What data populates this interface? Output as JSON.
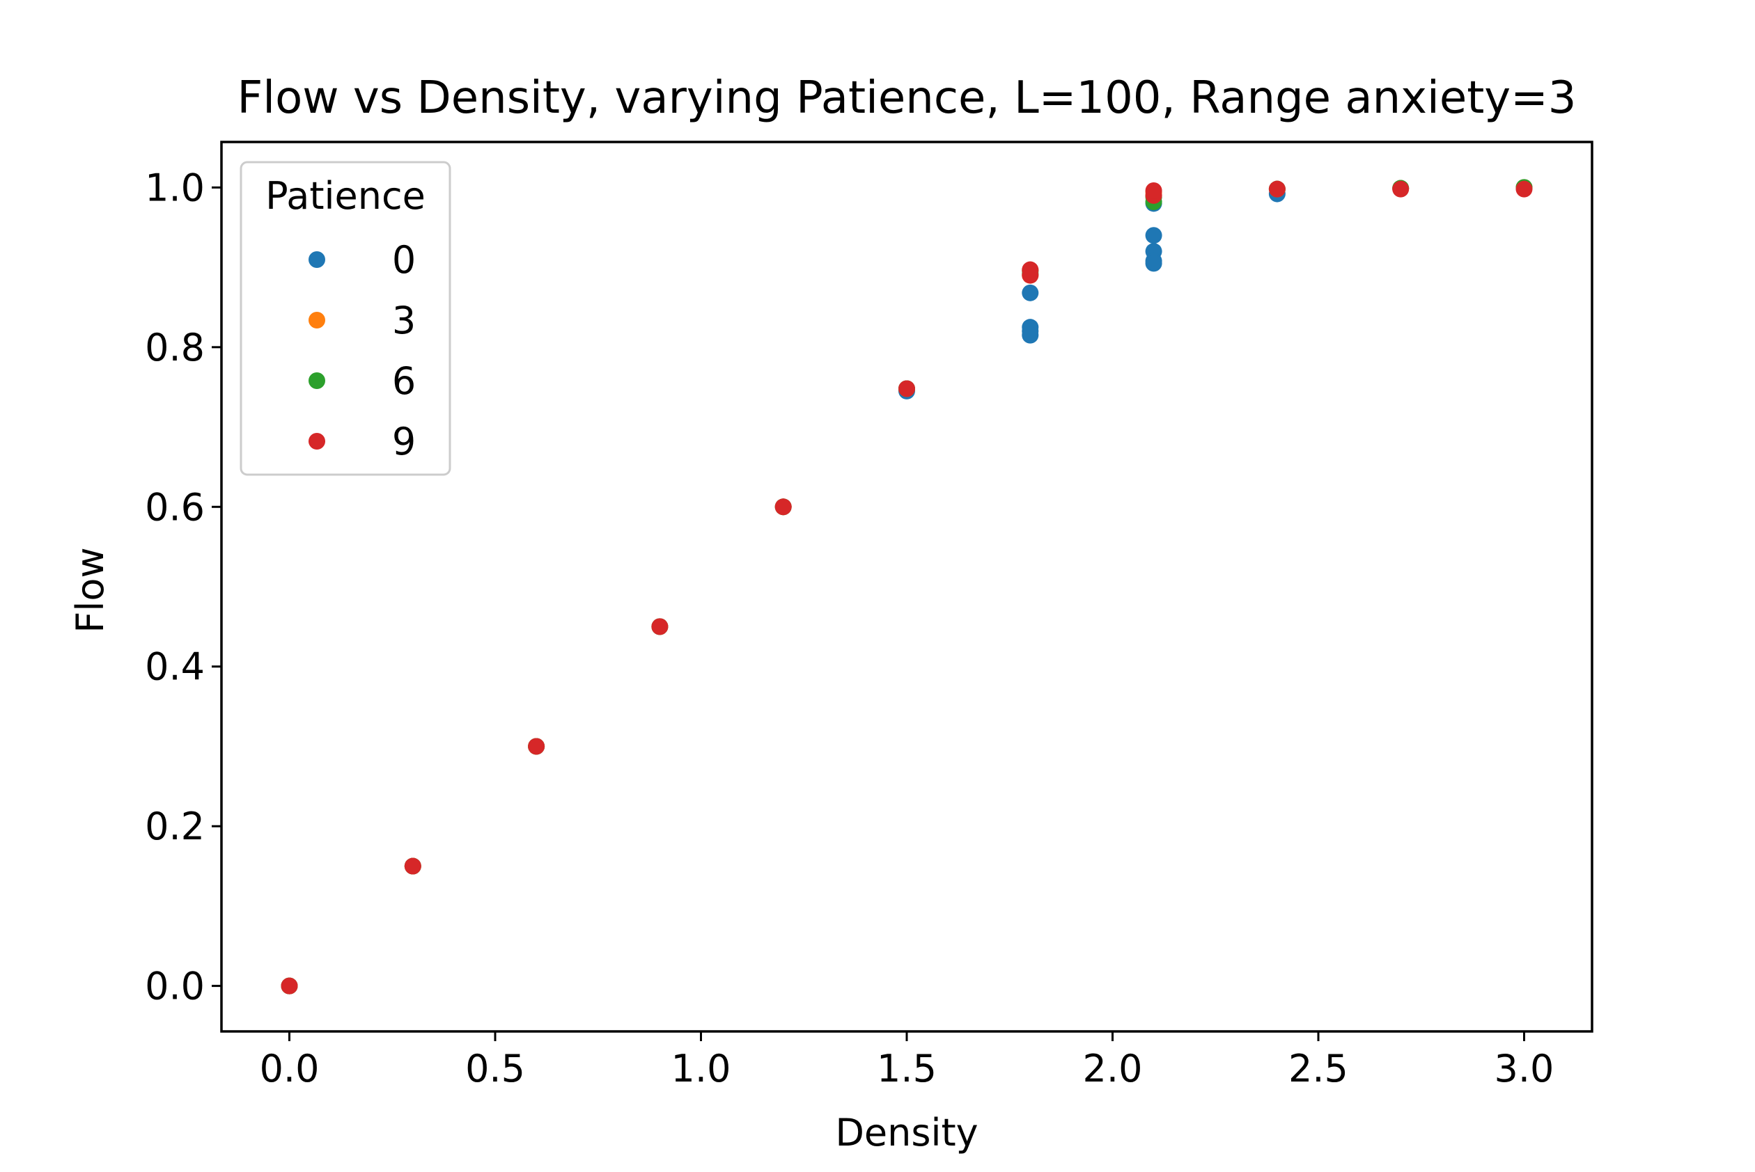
{
  "chart_data": {
    "type": "scatter",
    "title": "Flow vs Density, varying Patience, L=100, Range anxiety=3",
    "xlabel": "Density",
    "ylabel": "Flow",
    "xlim": [
      -0.165,
      3.165
    ],
    "ylim": [
      -0.057,
      1.057
    ],
    "xticks": [
      0.0,
      0.5,
      1.0,
      1.5,
      2.0,
      2.5,
      3.0
    ],
    "xtick_labels": [
      "0.0",
      "0.5",
      "1.0",
      "1.5",
      "2.0",
      "2.5",
      "3.0"
    ],
    "yticks": [
      0.0,
      0.2,
      0.4,
      0.6,
      0.8,
      1.0
    ],
    "ytick_labels": [
      "0.0",
      "0.2",
      "0.4",
      "0.6",
      "0.8",
      "1.0"
    ],
    "grid": false,
    "legend": {
      "title": "Patience",
      "placement": "upper-left"
    },
    "series": [
      {
        "name": "0",
        "color": "#1f77b4",
        "points": [
          [
            0.0,
            0.0
          ],
          [
            0.3,
            0.15
          ],
          [
            0.6,
            0.3
          ],
          [
            0.9,
            0.45
          ],
          [
            1.2,
            0.6
          ],
          [
            1.5,
            0.745
          ],
          [
            1.5,
            0.748
          ],
          [
            1.8,
            0.868
          ],
          [
            1.8,
            0.825
          ],
          [
            1.8,
            0.82
          ],
          [
            1.8,
            0.815
          ],
          [
            2.1,
            0.98
          ],
          [
            2.1,
            0.94
          ],
          [
            2.1,
            0.92
          ],
          [
            2.1,
            0.908
          ],
          [
            2.1,
            0.905
          ],
          [
            2.4,
            0.992
          ],
          [
            2.4,
            0.998
          ],
          [
            2.7,
            0.999
          ],
          [
            3.0,
            1.0
          ]
        ]
      },
      {
        "name": "3",
        "color": "#ff7f0e",
        "points": [
          [
            0.0,
            0.0
          ],
          [
            0.3,
            0.15
          ],
          [
            0.6,
            0.3
          ],
          [
            0.9,
            0.45
          ],
          [
            1.2,
            0.6
          ],
          [
            1.5,
            0.748
          ],
          [
            1.8,
            0.89
          ],
          [
            1.8,
            0.895
          ],
          [
            2.1,
            0.99
          ],
          [
            2.1,
            0.994
          ],
          [
            2.4,
            0.998
          ],
          [
            2.7,
            0.999
          ],
          [
            3.0,
            1.0
          ]
        ]
      },
      {
        "name": "6",
        "color": "#2ca02c",
        "points": [
          [
            0.0,
            0.0
          ],
          [
            0.3,
            0.15
          ],
          [
            0.6,
            0.3
          ],
          [
            0.9,
            0.45
          ],
          [
            1.2,
            0.6
          ],
          [
            1.5,
            0.748
          ],
          [
            1.8,
            0.892
          ],
          [
            1.8,
            0.896
          ],
          [
            2.1,
            0.982
          ],
          [
            2.1,
            0.988
          ],
          [
            2.4,
            0.998
          ],
          [
            2.7,
            0.999
          ],
          [
            3.0,
            1.0
          ]
        ]
      },
      {
        "name": "9",
        "color": "#d62728",
        "points": [
          [
            0.0,
            0.0
          ],
          [
            0.3,
            0.15
          ],
          [
            0.6,
            0.3
          ],
          [
            0.9,
            0.45
          ],
          [
            1.2,
            0.6
          ],
          [
            1.5,
            0.748
          ],
          [
            1.8,
            0.89
          ],
          [
            1.8,
            0.897
          ],
          [
            2.1,
            0.99
          ],
          [
            2.1,
            0.996
          ],
          [
            2.4,
            0.998
          ],
          [
            2.7,
            0.998
          ],
          [
            3.0,
            0.998
          ]
        ]
      }
    ]
  }
}
